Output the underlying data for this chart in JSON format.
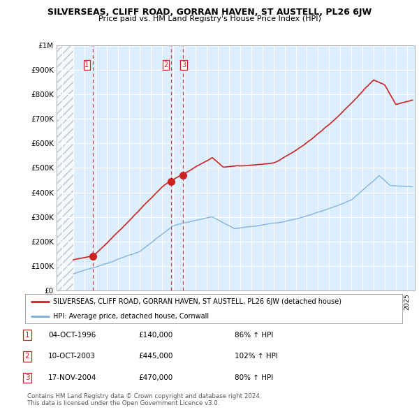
{
  "title": "SILVERSEAS, CLIFF ROAD, GORRAN HAVEN, ST AUSTELL, PL26 6JW",
  "subtitle": "Price paid vs. HM Land Registry's House Price Index (HPI)",
  "ylabel_ticks": [
    "£0",
    "£100K",
    "£200K",
    "£300K",
    "£400K",
    "£500K",
    "£600K",
    "£700K",
    "£800K",
    "£900K",
    "£1M"
  ],
  "ytick_values": [
    0,
    100000,
    200000,
    300000,
    400000,
    500000,
    600000,
    700000,
    800000,
    900000,
    1000000
  ],
  "xmin": 1993.5,
  "xmax": 2025.7,
  "ymin": 0,
  "ymax": 1000000,
  "sale_dates": [
    1996.77,
    2003.78,
    2004.89
  ],
  "sale_prices": [
    140000,
    445000,
    470000
  ],
  "red_line_color": "#cc2222",
  "blue_line_color": "#7aaddd",
  "dashed_red_color": "#cc2222",
  "background_color": "#ddeeff",
  "hatch_cutoff": 1995.0,
  "legend_entries": [
    "SILVERSEAS, CLIFF ROAD, GORRAN HAVEN, ST AUSTELL, PL26 6JW (detached house)",
    "HPI: Average price, detached house, Cornwall"
  ],
  "table_rows": [
    [
      "1",
      "04-OCT-1996",
      "£140,000",
      "86% ↑ HPI"
    ],
    [
      "2",
      "10-OCT-2003",
      "£445,000",
      "102% ↑ HPI"
    ],
    [
      "3",
      "17-NOV-2004",
      "£470,000",
      "80% ↑ HPI"
    ]
  ],
  "footnote1": "Contains HM Land Registry data © Crown copyright and database right 2024.",
  "footnote2": "This data is licensed under the Open Government Licence v3.0."
}
